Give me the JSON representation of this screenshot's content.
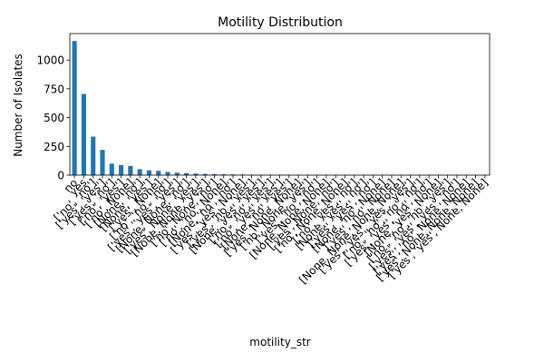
{
  "chart_data": {
    "type": "bar",
    "title": "Motility Distribution",
    "xlabel": "motility_str",
    "ylabel": "Number of Isolates",
    "ylim": [
      0,
      1230
    ],
    "yticks": [
      0,
      250,
      500,
      750,
      1000
    ],
    "grid": false,
    "bar_color": "#1f77b4",
    "categories": [
      "no",
      "yes",
      "['no', 'no']",
      "['yes', 'yes']",
      "['yes', 'no']",
      "['no', 'yes']",
      "['no', None]",
      "[None, 'no']",
      "[None, 'yes']",
      "['yes', None]",
      "['no', 'no', 'no']",
      "['yes', 'yes', 'yes']",
      "[None, None, 'no']",
      "['yes', None, 'yes']",
      "[None, None, 'yes']",
      "['no', None, 'no']",
      "['no', 'no', None]",
      "[None, 'no', 'no']",
      "['yes', 'yes', None]",
      "['yes', 'no', 'yes']",
      "[None, 'yes', 'yes']",
      "['no', 'no', 'yes']",
      "['no', 'yes', 'yes']",
      "[None, 'no', 'yes']",
      "['yes', None, None]",
      "['no', None, 'yes']",
      "['yes', 'no', 'no']",
      "[None, None, None]",
      "['yes', None, 'no']",
      "['no', None, None]",
      "['no', 'yes', 'no']",
      "[None, 'yes', 'no']",
      "['yes', 'yes', 'no']",
      "[None, 'no', None]",
      "['yes', 'no', None]",
      "[None, None, None, None]",
      "['yes', 'yes', 'yes', 'yes']",
      "['no', 'no', 'no', 'no']",
      "['yes', 'yes', 'no', 'no']",
      "[None, 'yes', None]",
      "['no', 'no', 'no', 'yes']",
      "['yes', 'yes', 'yes', 'no']",
      "['yes', 'no', None, None]",
      "['yes', None, None, None]",
      "['yes', 'yes', None, None]"
    ],
    "values": [
      1165,
      705,
      335,
      220,
      100,
      88,
      80,
      52,
      42,
      38,
      28,
      22,
      18,
      14,
      11,
      9,
      7,
      6,
      5,
      4,
      4,
      3,
      3,
      3,
      2,
      2,
      2,
      2,
      2,
      1,
      1,
      1,
      1,
      1,
      1,
      1,
      1,
      1,
      1,
      1,
      1,
      1,
      1,
      1,
      1
    ]
  }
}
